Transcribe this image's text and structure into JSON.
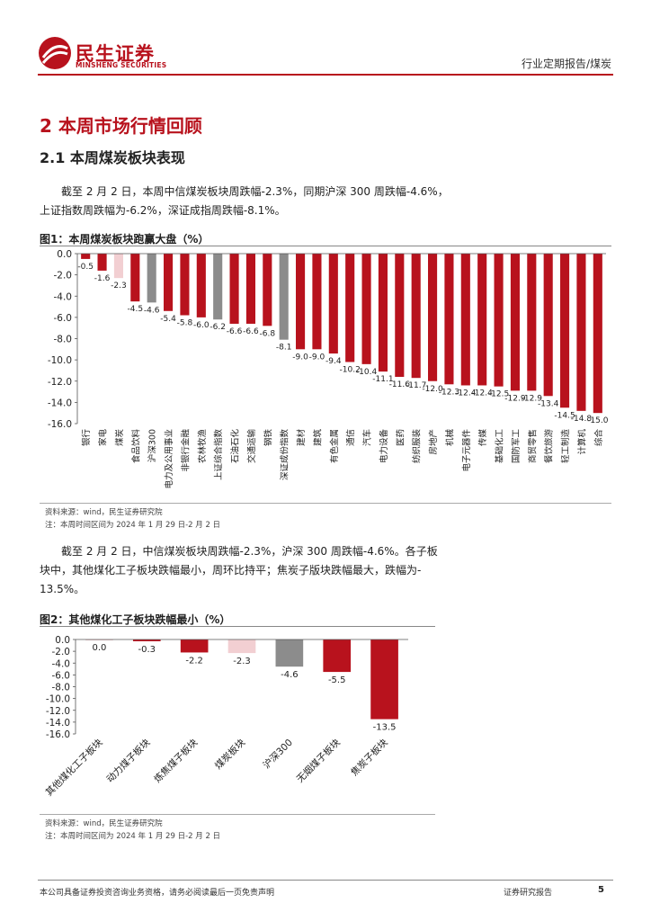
{
  "header": {
    "brand_cn": "民生证券",
    "brand_en": "MINSHENG SECURITIES",
    "report_type": "行业定期报告/煤炭",
    "brand_color": "#b8121d"
  },
  "section": {
    "h1": "2 本周市场行情回顾",
    "h2": "2.1 本周煤炭板块表现"
  },
  "paragraphs": {
    "p1_line1": "截至 2 月 2 日，本周中信煤炭板块周跌幅-2.3%，同期沪深 300 周跌幅-4.6%，",
    "p1_line2": "上证指数周跌幅为-6.2%，深证成指周跌幅-8.1%。",
    "p2_line1": "截至 2 月 2 日，中信煤炭板块周跌幅-2.3%，沪深 300 周跌幅-4.6%。各子板",
    "p2_line2": "块中，其他煤化工子板块跌幅最小，周环比持平；焦炭子版块跌幅最大，跌幅为-",
    "p2_line3": "13.5%。"
  },
  "figure1": {
    "title": "图1：本周煤炭板块跑赢大盘（%）",
    "source": "资料来源：wind，民生证券研究院",
    "note": "注：本周时间区间为 2024 年 1 月 29 日-2 月 2 日"
  },
  "figure2": {
    "title": "图2：其他煤化工子板块跌幅最小（%）",
    "source": "资料来源：wind，民生证券研究院",
    "note": "注：本周时间区间为 2024 年 1 月 29 日-2 月 2 日"
  },
  "footer": {
    "disclaimer": "本公司具备证券投资咨询业务资格，请务必阅读最后一页免责声明",
    "doc_type": "证券研究报告",
    "page": "5"
  },
  "colors": {
    "bar_red": "#b8121d",
    "bar_pink": "#f2cfd2",
    "bar_gray": "#8c8c8c"
  },
  "chart_data": [
    {
      "type": "bar",
      "title": "图1：本周煤炭板块跑赢大盘（%）",
      "ylim": [
        -16,
        0
      ],
      "yticks": [
        0,
        -2,
        -4,
        -6,
        -8,
        -10,
        -12,
        -14,
        -16
      ],
      "categories": [
        "银行",
        "家电",
        "煤炭",
        "食品饮料",
        "沪深300",
        "电力及公用事业",
        "非银行金融",
        "农林牧渔",
        "上证综合指数",
        "石油石化",
        "交通运输",
        "钢铁",
        "深证成份指数",
        "建材",
        "建筑",
        "有色金属",
        "通信",
        "汽车",
        "电力设备",
        "医药",
        "纺织服装",
        "房地产",
        "机械",
        "电子元器件",
        "传媒",
        "基础化工",
        "国防军工",
        "商贸零售",
        "餐饮旅游",
        "轻工制造",
        "计算机",
        "综合"
      ],
      "values": [
        -0.5,
        -1.6,
        -2.3,
        -4.5,
        -4.6,
        -5.4,
        -5.8,
        -6.0,
        -6.2,
        -6.6,
        -6.6,
        -6.8,
        -8.1,
        -9.0,
        -9.0,
        -9.4,
        -10.2,
        -10.4,
        -11.1,
        -11.6,
        -11.7,
        -12.0,
        -12.3,
        -12.4,
        -12.4,
        -12.5,
        -12.9,
        -12.9,
        -13.4,
        -14.5,
        -14.8,
        -15.0
      ],
      "highlight": {
        "煤炭": "pink",
        "沪深300": "gray",
        "上证综合指数": "gray",
        "深证成份指数": "gray"
      }
    },
    {
      "type": "bar",
      "title": "图2：其他煤化工子板块跌幅最小（%）",
      "ylim": [
        -16,
        0
      ],
      "yticks": [
        0,
        -2,
        -4,
        -6,
        -8,
        -10,
        -12,
        -14,
        -16
      ],
      "categories": [
        "其他煤化工子板块",
        "动力煤子板块",
        "炼焦煤子板块",
        "煤炭板块",
        "沪深300",
        "无烟煤子板块",
        "焦炭子板块"
      ],
      "values": [
        0.0,
        -0.3,
        -2.2,
        -2.3,
        -4.6,
        -5.5,
        -13.5
      ],
      "highlight": {
        "煤炭板块": "pink",
        "沪深300": "gray"
      }
    }
  ]
}
